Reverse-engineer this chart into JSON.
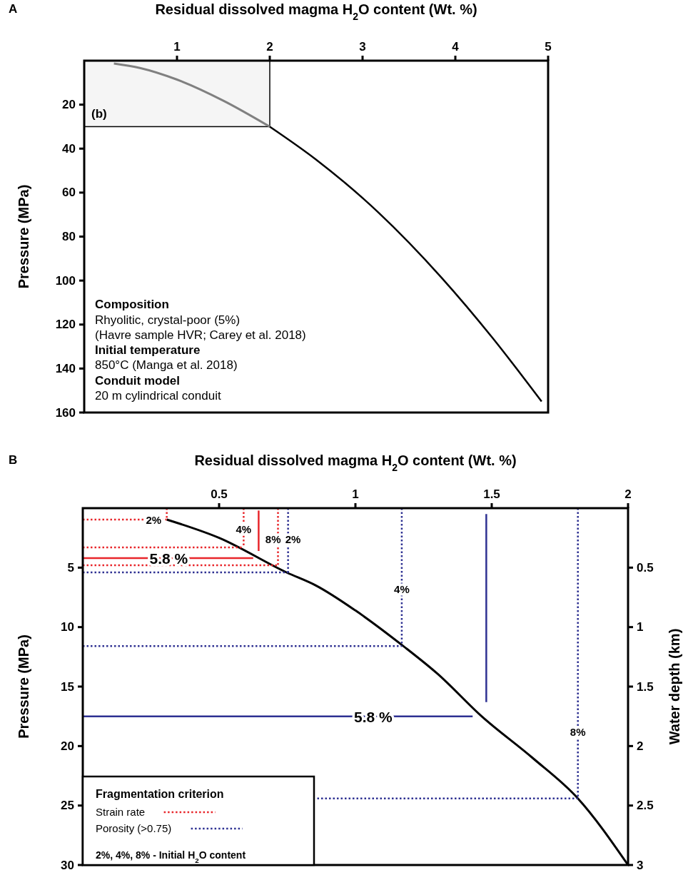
{
  "chart_data": [
    {
      "type": "line",
      "title": "A",
      "xlabel": "Residual dissolved magma H$_{2}$O content (Wt. %)",
      "ylabel": "Pressure (MPa)",
      "xlim": [
        0,
        5
      ],
      "xticks": [
        1,
        2,
        3,
        4,
        5
      ],
      "ylim": [
        160,
        0
      ],
      "yticks": [
        20,
        40,
        60,
        80,
        100,
        120,
        140,
        160
      ],
      "series": [
        {
          "color": "#808080",
          "line_style": "solid",
          "x": [
            0.32,
            0.6,
            1.0,
            1.5,
            2.0
          ],
          "values": [
            1.3,
            3.3,
            8.6,
            18.2,
            30
          ]
        },
        {
          "color": "#000000",
          "line_style": "solid",
          "x": [
            2.0,
            2.5,
            3.17,
            3.85,
            4.4,
            4.93
          ],
          "values": [
            30,
            45,
            69,
            98.6,
            126,
            155
          ]
        }
      ],
      "annotations": [
        "(b)",
        "Composition",
        "Rhyolitic, crystal-poor (5%)\n(Havre sample HVR; Carey et al. 2018)",
        "Initial temperature",
        "850°C (Manga et al. 2018)",
        "Conduit model",
        "20 m cylindrical conduit"
      ]
    },
    {
      "type": "line",
      "title": "B",
      "xlabel": "Residual dissolved magma H$_{2}$O content (Wt. %)",
      "ylabel": "Pressure (MPa)",
      "y2label": "Water depth (km)",
      "legend_title": "Fragmentation criterion",
      "legend": "bottom left",
      "xlim": [
        0,
        2
      ],
      "xticks": [
        0.5,
        1,
        1.5,
        2
      ],
      "ylim": [
        30,
        0
      ],
      "yticks": [
        5,
        10,
        15,
        20,
        25,
        30
      ],
      "y2lim": [
        3,
        0
      ],
      "y2ticks": [
        0.5,
        1,
        1.5,
        2,
        2.5,
        3
      ],
      "series": [
        {
          "color": "#000000",
          "line_style": "solid",
          "x": [
            0.308,
            0.5,
            0.747,
            0.855,
            1.0,
            1.176,
            1.3,
            1.463,
            1.65,
            1.816,
            2.0
          ],
          "values": [
            0.96,
            2.5,
            5.4,
            6.5,
            8.6,
            11.6,
            13.9,
            17.5,
            21,
            24.4,
            30
          ]
        },
        {
          "name": "Strain rate",
          "color": "#e8262b",
          "line_style": "dotted",
          "x": [
            0,
            0.308
          ],
          "values": [
            0.96,
            0.96
          ]
        },
        {
          "color": "#e8262b",
          "line_style": "dotted",
          "x": [
            0.308,
            0.308
          ],
          "values": [
            0,
            0.96
          ]
        },
        {
          "color": "#e8262b",
          "line_style": "dotted",
          "x": [
            0.59,
            0.59
          ],
          "values": [
            0,
            3.3
          ]
        },
        {
          "color": "#e8262b",
          "line_style": "dotted",
          "x": [
            0,
            0.59
          ],
          "values": [
            3.3,
            3.3
          ]
        },
        {
          "color": "#e8262b",
          "line_style": "dotted",
          "x": [
            0.716,
            0.716
          ],
          "values": [
            0,
            4.8
          ]
        },
        {
          "color": "#e8262b",
          "line_style": "dotted",
          "x": [
            0,
            0.716
          ],
          "values": [
            4.8,
            4.8
          ]
        },
        {
          "color": "#e8262b",
          "line_style": "solid",
          "x": [
            0.645,
            0.645
          ],
          "values": [
            0.2,
            3.6
          ]
        },
        {
          "color": "#e8262b",
          "line_style": "solid",
          "x": [
            0,
            0.625
          ],
          "values": [
            4.2,
            4.2
          ]
        },
        {
          "name": "Porosity (>0.75)",
          "color": "#2e3192",
          "line_style": "dotted",
          "x": [
            0.753,
            0.753
          ],
          "values": [
            0,
            5.4
          ]
        },
        {
          "color": "#2e3192",
          "line_style": "dotted",
          "x": [
            0,
            0.753
          ],
          "values": [
            5.4,
            5.4
          ]
        },
        {
          "color": "#2e3192",
          "line_style": "dotted",
          "x": [
            1.17,
            1.17
          ],
          "values": [
            0,
            11.6
          ]
        },
        {
          "color": "#2e3192",
          "line_style": "dotted",
          "x": [
            0,
            1.17
          ],
          "values": [
            11.6,
            11.6
          ]
        },
        {
          "color": "#2e3192",
          "line_style": "dotted",
          "x": [
            1.816,
            1.816
          ],
          "values": [
            0,
            24.4
          ]
        },
        {
          "color": "#2e3192",
          "line_style": "dotted",
          "x": [
            0.86,
            1.816
          ],
          "values": [
            24.4,
            24.4
          ]
        },
        {
          "color": "#2e3192",
          "line_style": "solid",
          "x": [
            1.48,
            1.48
          ],
          "values": [
            0.5,
            16.3
          ]
        },
        {
          "color": "#2e3192",
          "line_style": "solid",
          "x": [
            0,
            1.43
          ],
          "values": [
            17.5,
            17.5
          ]
        }
      ],
      "annotations": [
        {
          "text": "2%",
          "x": 0.26,
          "y": 0.96
        },
        {
          "text": "4%",
          "x": 0.59,
          "y": 1.75
        },
        {
          "text": "8%",
          "x": 0.716,
          "y": 2.6
        },
        {
          "text": "2%",
          "x": 0.753,
          "y": 2.6
        },
        {
          "text": "5.8 %",
          "x": 0.315,
          "y": 4.2
        },
        {
          "text": "4%",
          "x": 1.17,
          "y": 6.8
        },
        {
          "text": "5.8 %",
          "x": 1.065,
          "y": 17.5
        },
        {
          "text": "8%",
          "x": 1.816,
          "y": 18.8
        },
        "2%, 4%, 8% - Initial H$_{2}$O content"
      ]
    }
  ]
}
